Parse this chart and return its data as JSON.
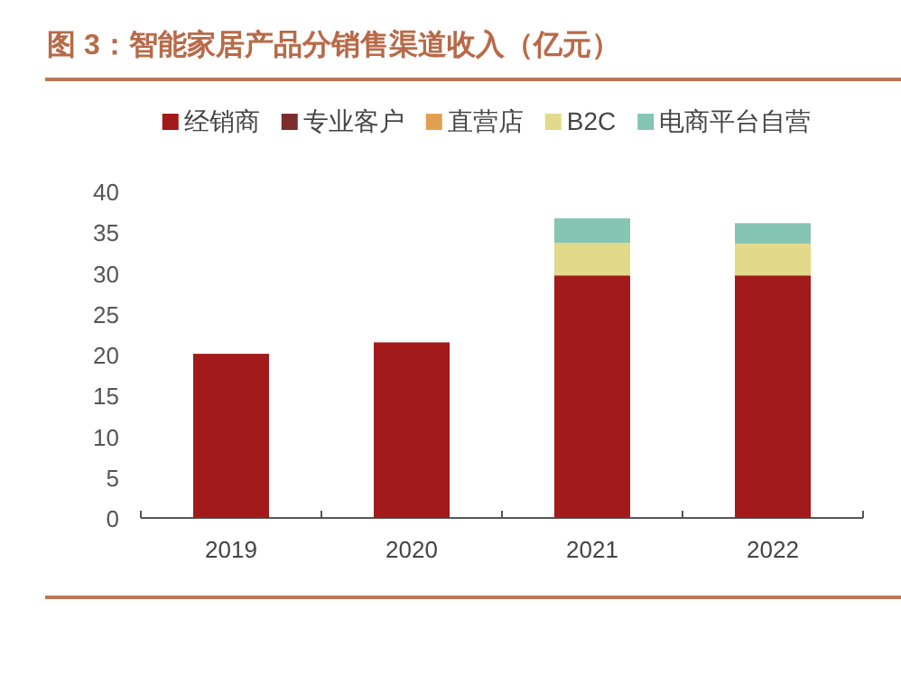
{
  "chart_data": {
    "type": "bar",
    "title": "图 3：智能家居产品分销售渠道收入（亿元）",
    "categories": [
      "2019",
      "2020",
      "2021",
      "2022"
    ],
    "stacked": true,
    "series": [
      {
        "name": "经销商",
        "color": "#a31a1a",
        "values": [
          20.1,
          21.5,
          29.7,
          29.7
        ]
      },
      {
        "name": "专业客户",
        "color": "#7b2d2d",
        "values": [
          null,
          null,
          null,
          null
        ]
      },
      {
        "name": "直营店",
        "color": "#e0a050",
        "values": [
          null,
          null,
          null,
          null
        ]
      },
      {
        "name": "B2C",
        "color": "#e2d98a",
        "values": [
          null,
          null,
          4.0,
          3.9
        ]
      },
      {
        "name": "电商平台自营",
        "color": "#86c4b4",
        "values": [
          null,
          null,
          3.0,
          2.5
        ]
      }
    ],
    "ylim": [
      0,
      40
    ],
    "yticks": [
      0,
      5,
      10,
      15,
      20,
      25,
      30,
      35,
      40
    ],
    "legend": "top"
  }
}
